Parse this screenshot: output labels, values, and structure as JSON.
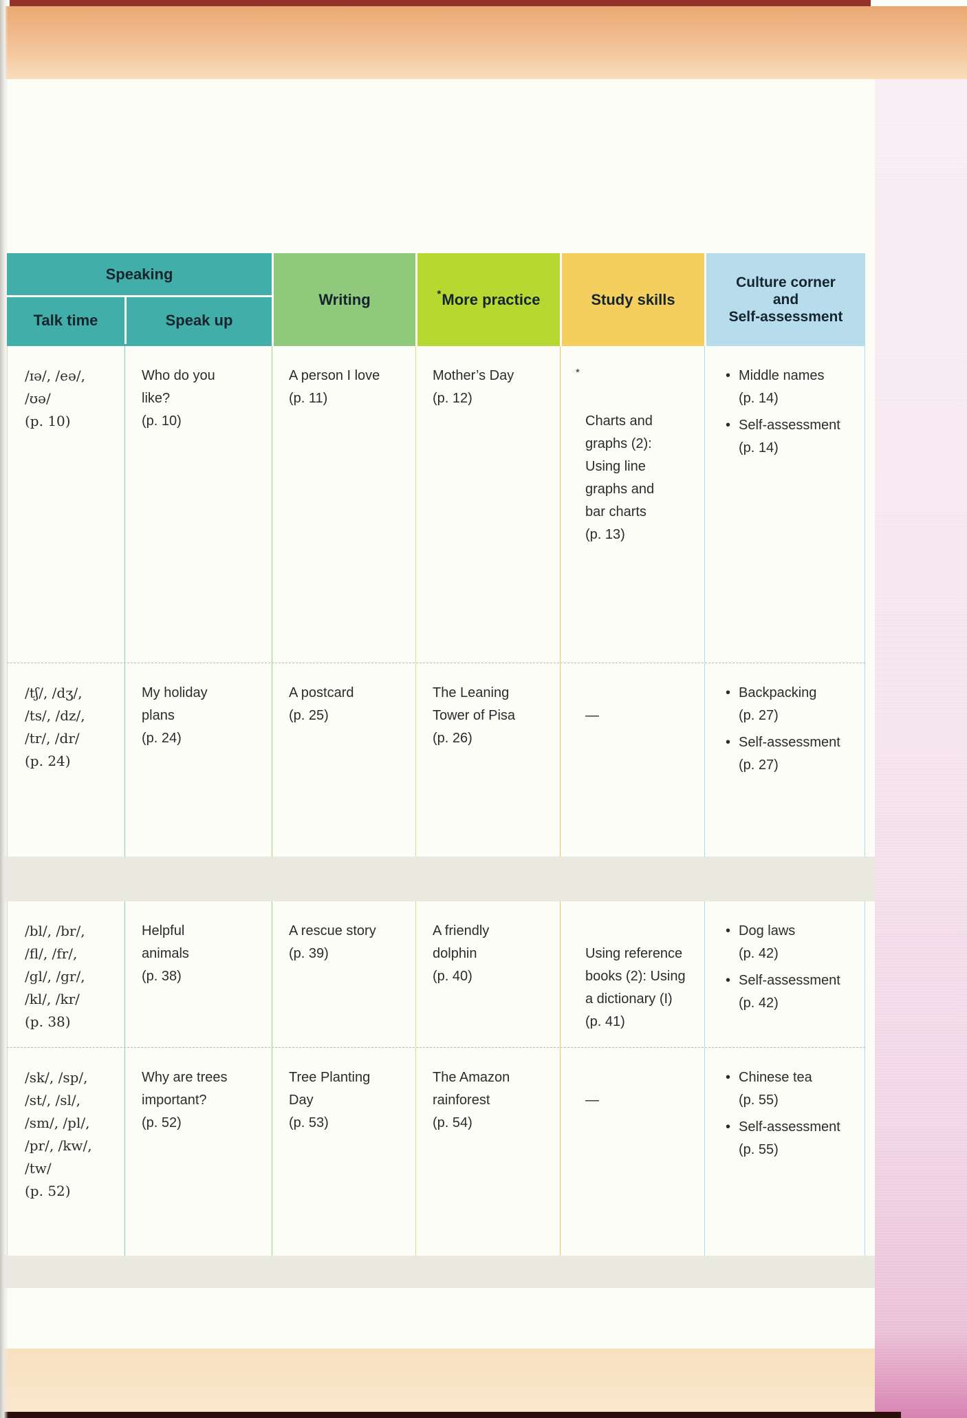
{
  "table": {
    "bullet": "•",
    "head": {
      "speaking": "Speaking",
      "talk_time": "Talk time",
      "speak_up": "Speak up",
      "writing": "Writing",
      "more_practice_prefix": "*",
      "more_practice": "More practice",
      "study_skills": "Study skills",
      "culture_corner": "Culture corner\nand\nSelf-assessment"
    },
    "rows": [
      {
        "talk_time": "/ɪə/, /eə/,\n/ʊə/\n(p. 10)",
        "speak_up": "Who do you\nlike?\n(p. 10)",
        "writing": "A person I love\n(p. 11)",
        "more_practice": "Mother’s Day\n(p. 12)",
        "study_prefix": "*",
        "study_skills": "Charts and\ngraphs (2):\nUsing line\ngraphs and\nbar charts\n(p. 13)",
        "culture": [
          "Middle names\n(p. 14)",
          "Self-assessment\n(p. 14)"
        ]
      },
      {
        "talk_time": "/tʃ/, /dʒ/,\n/ts/, /dz/,\n/tr/, /dr/\n(p. 24)",
        "speak_up": "My holiday\nplans\n(p. 24)",
        "writing": "A postcard\n(p. 25)",
        "more_practice": "The Leaning\nTower of Pisa\n(p. 26)",
        "study_skills": "—",
        "culture": [
          "Backpacking\n(p. 27)",
          "Self-assessment\n(p. 27)"
        ]
      },
      {
        "talk_time": "/bl/, /br/,\n/fl/, /fr/,\n/gl/, /gr/,\n/kl/, /kr/\n(p. 38)",
        "speak_up": "Helpful\nanimals\n(p. 38)",
        "writing": "A rescue story\n(p. 39)",
        "more_practice": "A friendly\ndolphin\n(p. 40)",
        "study_skills": "Using reference\nbooks (2): Using\na dictionary (I)\n(p. 41)",
        "culture": [
          "Dog laws\n(p. 42)",
          "Self-assessment\n(p. 42)"
        ]
      },
      {
        "talk_time": "/sk/, /sp/,\n/st/, /sl/,\n/sm/, /pl/,\n/pr/, /kw/,\n/tw/\n(p. 52)",
        "speak_up": "Why are trees\nimportant?\n(p. 52)",
        "writing": "Tree Planting\nDay\n(p. 53)",
        "more_practice": "The Amazon\nrainforest\n(p. 54)",
        "study_skills": "—",
        "culture": [
          "Chinese tea\n(p. 55)",
          "Self-assessment\n(p. 55)"
        ]
      }
    ],
    "colors": {
      "speaking_teal": "#41aeaa",
      "writing_green": "#90c97c",
      "more_practice_lime": "#b6d831",
      "study_skills_yellow": "#f5cf5e",
      "culture_blue": "#b7ddec",
      "top_band_orange": "#f1bd8f",
      "side_strip_pink": "#f5e3ed",
      "accent_maroon": "#93322b",
      "separator_gray": "#eae9e0"
    }
  }
}
